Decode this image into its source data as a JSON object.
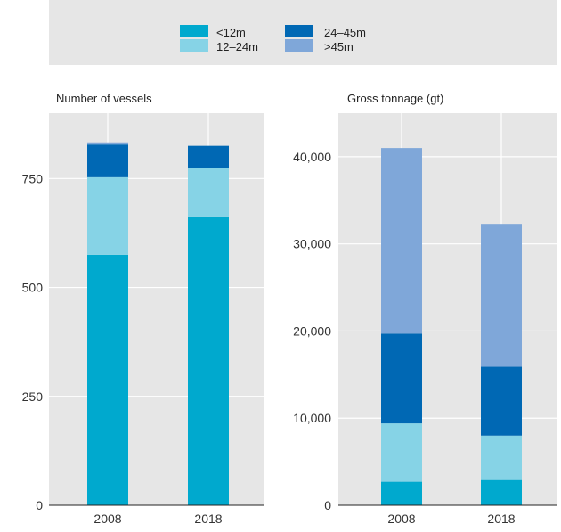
{
  "legend": {
    "items": [
      {
        "label": "<12m",
        "color": "#00a9ce"
      },
      {
        "label": "12–24m",
        "color": "#86d3e6"
      },
      {
        "label": "24–45m",
        "color": "#0068b4"
      },
      {
        "label": ">45m",
        "color": "#7fa7d9"
      }
    ]
  },
  "chart_data": [
    {
      "type": "bar",
      "stacked": true,
      "title": "Number of vessels",
      "categories": [
        "2008",
        "2018"
      ],
      "series": [
        {
          "name": "<12m",
          "values": [
            575,
            663
          ]
        },
        {
          "name": "12–24m",
          "values": [
            178,
            112
          ]
        },
        {
          "name": "24–45m",
          "values": [
            75,
            50
          ]
        },
        {
          "name": ">45m",
          "values": [
            5,
            0
          ]
        }
      ],
      "yticks": [
        "0",
        "250",
        "500",
        "750"
      ],
      "ylim": [
        0,
        900
      ],
      "grid": true
    },
    {
      "type": "bar",
      "stacked": true,
      "title": "Gross tonnage (gt)",
      "categories": [
        "2008",
        "2018"
      ],
      "series": [
        {
          "name": "<12m",
          "values": [
            2700,
            2900
          ]
        },
        {
          "name": "12–24m",
          "values": [
            6700,
            5100
          ]
        },
        {
          "name": "24–45m",
          "values": [
            10300,
            7900
          ]
        },
        {
          "name": ">45m",
          "values": [
            21300,
            16400
          ]
        }
      ],
      "yticks": [
        "0",
        "10,000",
        "20,000",
        "30,000",
        "40,000"
      ],
      "ylim": [
        0,
        45000
      ],
      "grid": true
    }
  ]
}
